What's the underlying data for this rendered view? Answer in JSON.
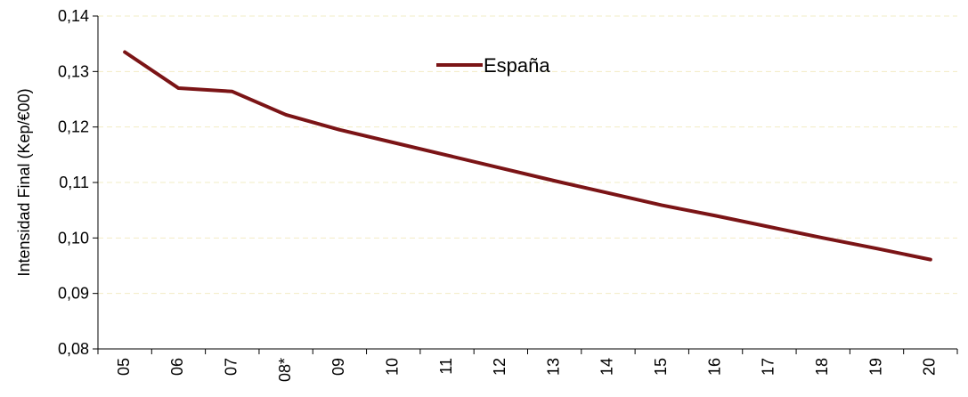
{
  "chart_data": {
    "type": "line",
    "title": "",
    "xlabel": "",
    "ylabel": "Intensidad Final (Kep/€00)",
    "categories": [
      "05",
      "06",
      "07",
      "08*",
      "09",
      "10",
      "11",
      "12",
      "13",
      "14",
      "15",
      "16",
      "17",
      "18",
      "19",
      "20"
    ],
    "series": [
      {
        "name": "España",
        "color": "#7b1416",
        "values": [
          0.1335,
          0.127,
          0.1264,
          0.1222,
          0.1195,
          0.1172,
          0.1149,
          0.1126,
          0.1103,
          0.1081,
          0.1059,
          0.104,
          0.102,
          0.1,
          0.0981,
          0.0961
        ]
      }
    ],
    "ylim": [
      0.08,
      0.14
    ],
    "yticks": [
      0.08,
      0.09,
      0.1,
      0.11,
      0.12,
      0.13,
      0.14
    ],
    "ytick_labels": [
      "0,08",
      "0,09",
      "0,10",
      "0,11",
      "0,12",
      "0,13",
      "0,14"
    ],
    "grid": true,
    "grid_color": "#f2ecc4",
    "legend_position": "top-center"
  }
}
